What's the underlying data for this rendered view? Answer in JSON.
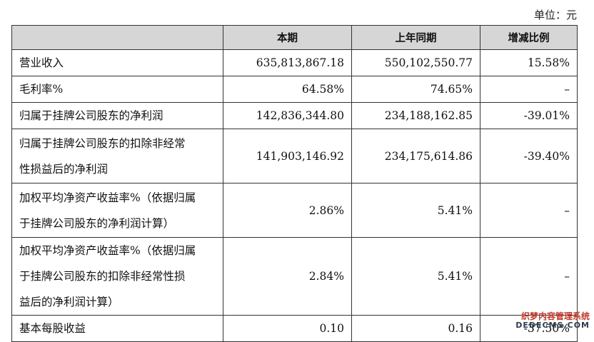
{
  "unit_label": "单位：元",
  "header": [
    "",
    "本期",
    "上年同期",
    "增减比例"
  ],
  "rows": [
    {
      "label": [
        "营业收入"
      ],
      "current": "635,813,867.18",
      "prior": "550,102,550.77",
      "change": "15.58%"
    },
    {
      "label": [
        "毛利率%"
      ],
      "current": "64.58%",
      "prior": "74.65%",
      "change": "–"
    },
    {
      "label": [
        "归属于挂牌公司股东的净利润"
      ],
      "current": "142,836,344.80",
      "prior": "234,188,162.85",
      "change": "-39.01%"
    },
    {
      "label": [
        "归属于挂牌公司股东的扣除非经常",
        "性损益后的净利润"
      ],
      "current": "141,903,146.92",
      "prior": "234,175,614.86",
      "change": "-39.40%"
    },
    {
      "label": [
        "加权平均净资产收益率%（依据归属",
        "于挂牌公司股东的净利润计算）"
      ],
      "current": "2.86%",
      "prior": "5.41%",
      "change": "–"
    },
    {
      "label": [
        "加权平均净资产收益率%（依据归属",
        "于挂牌公司股东的扣除非经常性损",
        "益后的净利润计算）"
      ],
      "current": "2.84%",
      "prior": "5.41%",
      "change": "–"
    },
    {
      "label": [
        "基本每股收益"
      ],
      "current": "0.10",
      "prior": "0.16",
      "change": "-37.50%"
    }
  ],
  "watermark": {
    "line1": "织梦内容管理系统",
    "line2": "DEDECMS.COM"
  }
}
